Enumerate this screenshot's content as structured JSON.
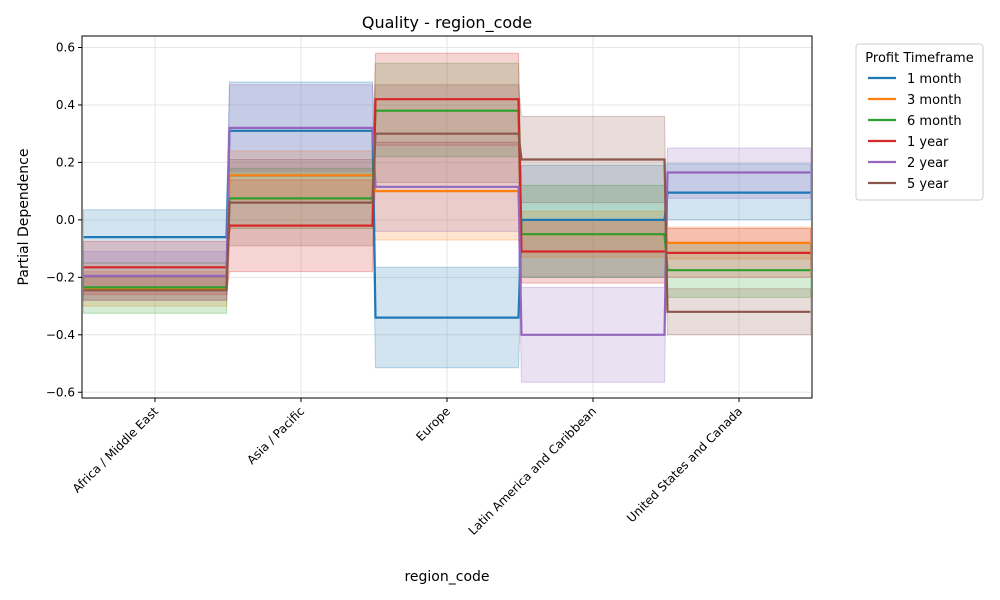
{
  "chart_data": {
    "type": "line",
    "title": "Quality - region_code",
    "xlabel": "region_code",
    "ylabel": "Partial Dependence",
    "categories": [
      "Africa / Middle East",
      "Asia / Pacific",
      "Europe",
      "Latin America and Caribbean",
      "United States and Canada"
    ],
    "ylim": [
      -0.62,
      0.64
    ],
    "yticks": [
      -0.6,
      -0.4,
      -0.2,
      0.0,
      0.2,
      0.4,
      0.6
    ],
    "ytick_labels": [
      "−0.6",
      "−0.4",
      "−0.2",
      "0.0",
      "0.2",
      "0.4",
      "0.6"
    ],
    "grid": true,
    "legend": {
      "title": "Profit Timeframe",
      "placement": "outside-top-right"
    },
    "series": [
      {
        "name": "1 month",
        "color": "#1f77b4",
        "values": [
          -0.06,
          0.31,
          -0.34,
          0.0,
          0.095
        ],
        "lower": [
          -0.15,
          0.15,
          -0.515,
          -0.2,
          0.0
        ],
        "upper": [
          0.035,
          0.48,
          -0.165,
          0.19,
          0.195
        ]
      },
      {
        "name": "3 month",
        "color": "#ff7f0e",
        "values": [
          -0.24,
          0.155,
          0.1,
          -0.05,
          -0.08
        ],
        "lower": [
          -0.3,
          0.07,
          -0.07,
          -0.13,
          -0.135
        ],
        "upper": [
          -0.18,
          0.24,
          0.27,
          0.03,
          -0.025
        ]
      },
      {
        "name": "6 month",
        "color": "#2ca02c",
        "values": [
          -0.235,
          0.075,
          0.38,
          -0.05,
          -0.175
        ],
        "lower": [
          -0.325,
          -0.03,
          0.22,
          -0.2,
          -0.27
        ],
        "upper": [
          -0.15,
          0.18,
          0.545,
          0.12,
          -0.08
        ]
      },
      {
        "name": "1 year",
        "color": "#d62728",
        "values": [
          -0.165,
          -0.02,
          0.42,
          -0.11,
          -0.115
        ],
        "lower": [
          -0.26,
          -0.18,
          0.26,
          -0.22,
          -0.2
        ],
        "upper": [
          -0.075,
          0.14,
          0.58,
          0.0,
          -0.03
        ]
      },
      {
        "name": "2 year",
        "color": "#9467bd",
        "values": [
          -0.195,
          0.32,
          0.115,
          -0.4,
          0.165
        ],
        "lower": [
          -0.28,
          0.17,
          -0.04,
          -0.565,
          0.075
        ],
        "upper": [
          -0.11,
          0.47,
          0.27,
          -0.235,
          0.25
        ]
      },
      {
        "name": "5 year",
        "color": "#8c564b",
        "values": [
          -0.245,
          0.06,
          0.3,
          0.21,
          -0.32
        ],
        "lower": [
          -0.28,
          -0.09,
          0.13,
          0.06,
          -0.4
        ],
        "upper": [
          -0.2,
          0.21,
          0.47,
          0.36,
          -0.24
        ]
      }
    ]
  }
}
